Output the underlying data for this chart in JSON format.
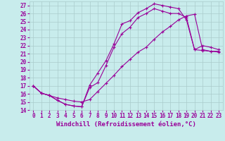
{
  "xlabel": "Windchill (Refroidissement éolien,°C)",
  "ylabel": "",
  "xlim": [
    -0.5,
    23.5
  ],
  "ylim": [
    14,
    27.5
  ],
  "xticks": [
    0,
    1,
    2,
    3,
    4,
    5,
    6,
    7,
    8,
    9,
    10,
    11,
    12,
    13,
    14,
    15,
    16,
    17,
    18,
    19,
    20,
    21,
    22,
    23
  ],
  "yticks": [
    14,
    15,
    16,
    17,
    18,
    19,
    20,
    21,
    22,
    23,
    24,
    25,
    26,
    27
  ],
  "background_color": "#c8ecec",
  "grid_color": "#aacccc",
  "line_color": "#990099",
  "curve1_x": [
    0,
    1,
    2,
    3,
    4,
    5,
    6,
    7,
    8,
    9,
    10,
    11,
    12,
    13,
    14,
    15,
    16,
    17,
    18,
    19,
    20,
    21,
    22,
    23
  ],
  "curve1_y": [
    17.0,
    16.1,
    15.8,
    15.2,
    14.7,
    14.5,
    14.4,
    17.1,
    18.6,
    20.1,
    22.2,
    24.7,
    25.1,
    26.1,
    26.6,
    27.2,
    27.0,
    26.8,
    26.6,
    25.2,
    21.5,
    21.4,
    21.3,
    21.3
  ],
  "curve2_x": [
    0,
    1,
    2,
    3,
    4,
    5,
    6,
    7,
    8,
    9,
    10,
    11,
    12,
    13,
    14,
    15,
    16,
    17,
    18,
    19,
    20,
    21,
    22,
    23
  ],
  "curve2_y": [
    17.0,
    16.1,
    15.8,
    15.2,
    14.7,
    14.5,
    14.4,
    16.8,
    17.4,
    19.5,
    21.8,
    23.5,
    24.3,
    25.5,
    26.0,
    26.6,
    26.3,
    26.0,
    26.0,
    25.5,
    21.5,
    22.0,
    21.8,
    21.5
  ],
  "curve3_x": [
    0,
    1,
    2,
    3,
    4,
    5,
    6,
    7,
    8,
    9,
    10,
    11,
    12,
    13,
    14,
    15,
    16,
    17,
    18,
    19,
    20,
    21,
    22,
    23
  ],
  "curve3_y": [
    17.0,
    16.1,
    15.8,
    15.5,
    15.3,
    15.1,
    15.0,
    15.3,
    16.3,
    17.3,
    18.3,
    19.4,
    20.3,
    21.2,
    21.8,
    22.8,
    23.7,
    24.4,
    25.2,
    25.7,
    25.9,
    21.5,
    21.3,
    21.2
  ],
  "tick_fontsize": 5.5,
  "xlabel_fontsize": 6.5,
  "figwidth": 3.2,
  "figheight": 2.0,
  "dpi": 100
}
